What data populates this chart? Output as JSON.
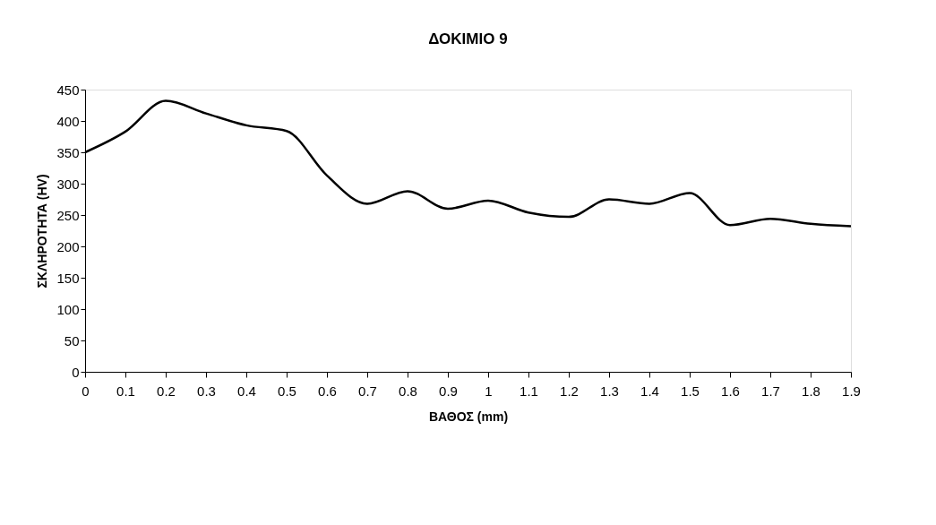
{
  "chart_data": {
    "type": "line",
    "title": "ΔΟΚΙΜΙΟ 9",
    "xlabel": "ΒΑΘΟΣ (mm)",
    "ylabel": "ΣΚΛΗΡΟΤΗΤΑ (HV)",
    "x": [
      0,
      0.1,
      0.2,
      0.3,
      0.4,
      0.5,
      0.6,
      0.7,
      0.8,
      0.9,
      1.0,
      1.1,
      1.2,
      1.3,
      1.4,
      1.5,
      1.6,
      1.7,
      1.8,
      1.9
    ],
    "series": [
      {
        "color": "#000000",
        "values": [
          350,
          383,
          432,
          412,
          393,
          384,
          313,
          268,
          288,
          260,
          273,
          254,
          247,
          275,
          268,
          285,
          234,
          244,
          236,
          232
        ]
      }
    ],
    "xlim": [
      0,
      1.9
    ],
    "xticks": [
      0,
      0.1,
      0.2,
      0.3,
      0.4,
      0.5,
      0.6,
      0.7,
      0.8,
      0.9,
      1,
      1.1,
      1.2,
      1.3,
      1.4,
      1.5,
      1.6,
      1.7,
      1.8,
      1.9
    ],
    "ylim": [
      0,
      450
    ],
    "yticks": [
      0,
      50,
      100,
      150,
      200,
      250,
      300,
      350,
      400,
      450
    ],
    "grid": false,
    "marker": "none",
    "line_style": "solid"
  }
}
